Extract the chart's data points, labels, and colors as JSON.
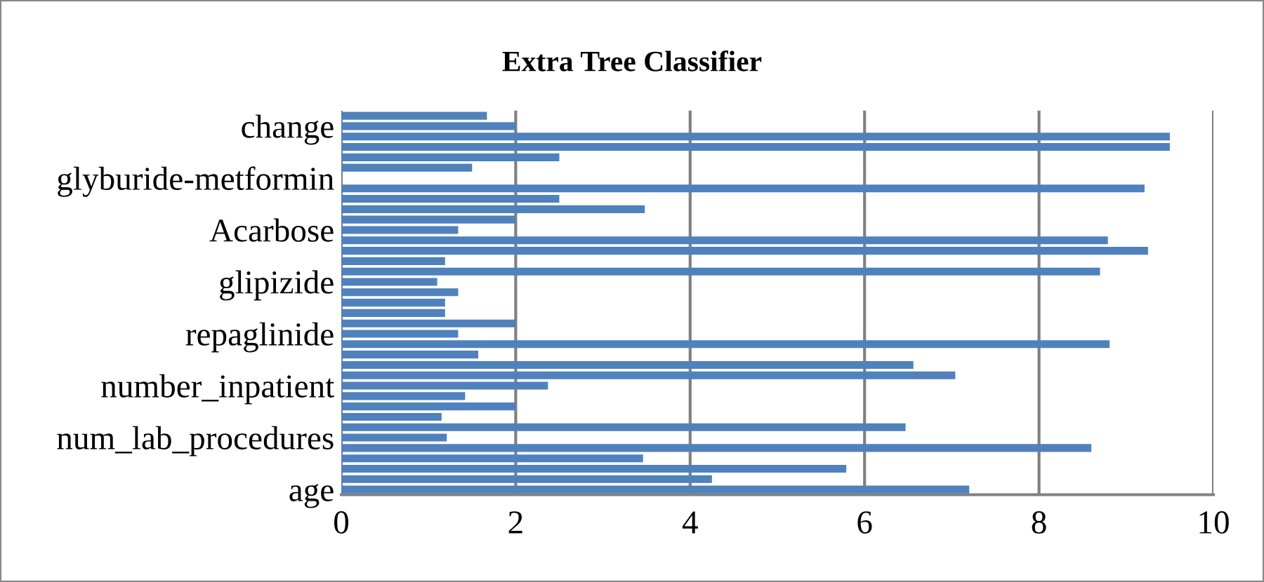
{
  "chart_data": {
    "type": "bar",
    "orientation": "horizontal",
    "title": "Extra Tree Classifier",
    "categories": [
      null,
      "change",
      null,
      null,
      null,
      null,
      "glyburide-metformin",
      null,
      null,
      null,
      null,
      "Acarbose",
      null,
      null,
      null,
      null,
      "glipizide",
      null,
      null,
      null,
      null,
      "repaglinide",
      null,
      null,
      null,
      null,
      "number_inpatient",
      null,
      null,
      null,
      null,
      "num_lab_procedures",
      null,
      null,
      null,
      null,
      "age"
    ],
    "values": [
      1.67,
      2.0,
      9.5,
      9.5,
      2.5,
      1.5,
      0,
      9.21,
      2.5,
      3.48,
      2.0,
      1.34,
      8.79,
      9.25,
      1.19,
      8.7,
      1.1,
      1.34,
      1.19,
      1.19,
      2.0,
      1.34,
      8.81,
      1.57,
      6.56,
      7.04,
      2.37,
      1.42,
      2.0,
      1.15,
      6.47,
      1.21,
      8.6,
      3.46,
      5.79,
      4.25,
      7.2
    ],
    "color": "#4f81bd",
    "xlim": [
      0,
      10
    ],
    "xticks": [
      0,
      2,
      4,
      6,
      8,
      10
    ],
    "grid": "x"
  }
}
